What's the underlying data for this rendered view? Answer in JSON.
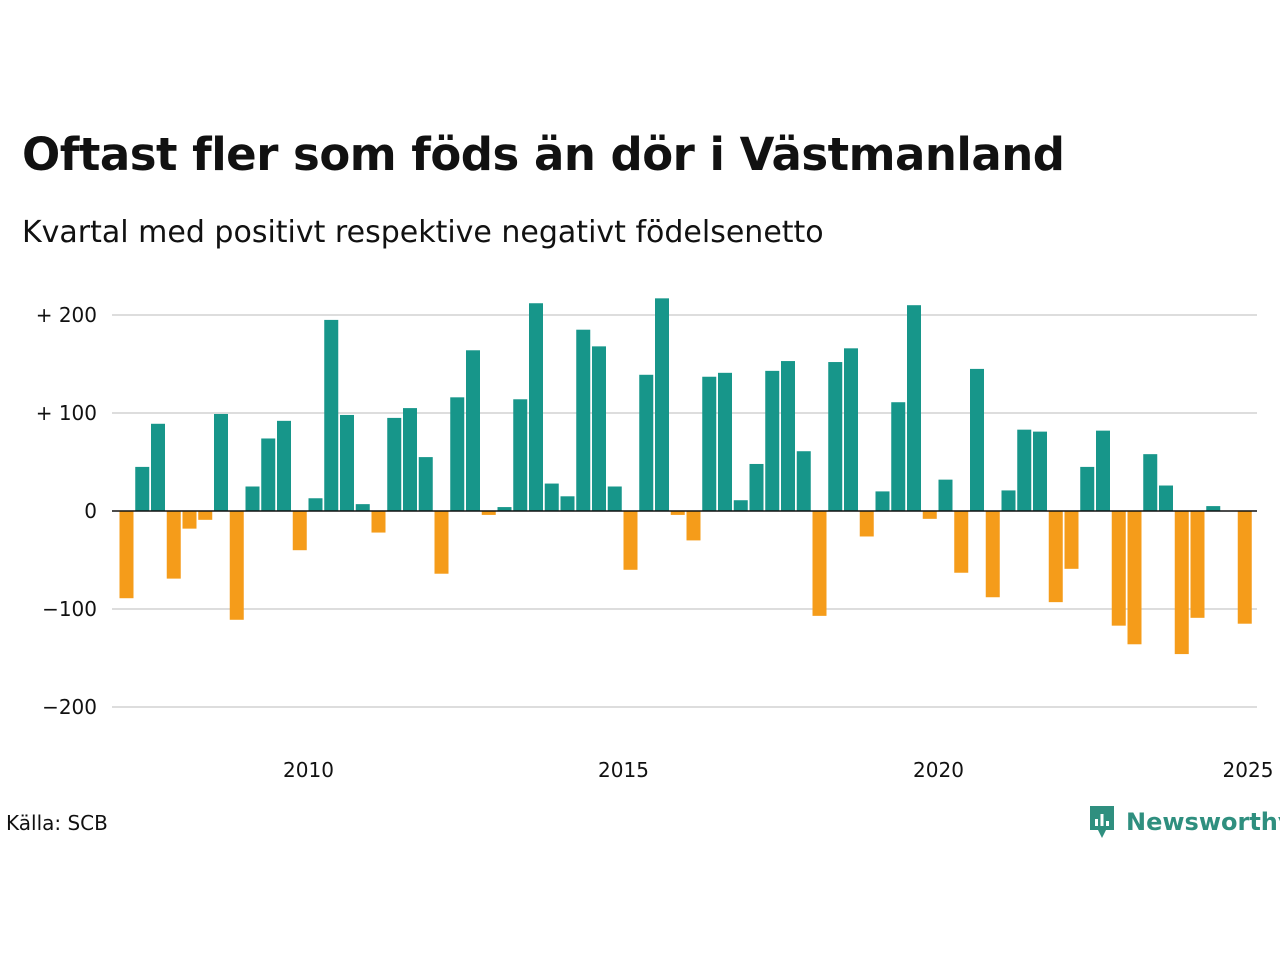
{
  "title": "Oftast fler som föds än dör i Västmanland",
  "subtitle": "Kvartal med positivt respektive negativt födelsenetto",
  "source": "Källa: SCB",
  "brand": "Newsworthy",
  "colors": {
    "positive": "#17968a",
    "negative": "#f59c1a",
    "grid": "#dddddd",
    "zero": "#111111",
    "brand": "#2f8f7f"
  },
  "chart_data": {
    "type": "bar",
    "quarters": [
      "2007-Q1",
      "2007-Q2",
      "2007-Q3",
      "2007-Q4",
      "2008-Q1",
      "2008-Q2",
      "2008-Q3",
      "2008-Q4",
      "2009-Q1",
      "2009-Q2",
      "2009-Q3",
      "2009-Q4",
      "2010-Q1",
      "2010-Q2",
      "2010-Q3",
      "2010-Q4",
      "2011-Q1",
      "2011-Q2",
      "2011-Q3",
      "2011-Q4",
      "2012-Q1",
      "2012-Q2",
      "2012-Q3",
      "2012-Q4",
      "2013-Q1",
      "2013-Q2",
      "2013-Q3",
      "2013-Q4",
      "2014-Q1",
      "2014-Q2",
      "2014-Q3",
      "2014-Q4",
      "2015-Q1",
      "2015-Q2",
      "2015-Q3",
      "2015-Q4",
      "2016-Q1",
      "2016-Q2",
      "2016-Q3",
      "2016-Q4",
      "2017-Q1",
      "2017-Q2",
      "2017-Q3",
      "2017-Q4",
      "2018-Q1",
      "2018-Q2",
      "2018-Q3",
      "2018-Q4",
      "2019-Q1",
      "2019-Q2",
      "2019-Q3",
      "2019-Q4",
      "2020-Q1",
      "2020-Q2",
      "2020-Q3",
      "2020-Q4",
      "2021-Q1",
      "2021-Q2",
      "2021-Q3",
      "2021-Q4",
      "2022-Q1",
      "2022-Q2",
      "2022-Q3",
      "2022-Q4",
      "2023-Q1",
      "2023-Q2",
      "2023-Q3",
      "2023-Q4",
      "2024-Q1",
      "2024-Q2",
      "2024-Q3",
      "2024-Q4"
    ],
    "values": [
      -89,
      45,
      89,
      -69,
      -18,
      -9,
      99,
      -111,
      25,
      74,
      92,
      -40,
      13,
      195,
      98,
      7,
      -22,
      95,
      105,
      55,
      -64,
      116,
      164,
      -4,
      4,
      114,
      212,
      28,
      15,
      185,
      168,
      25,
      -60,
      139,
      217,
      -4,
      -30,
      137,
      141,
      11,
      48,
      143,
      153,
      61,
      -107,
      152,
      166,
      -26,
      20,
      111,
      210,
      -8,
      32,
      -63,
      145,
      -88,
      21,
      83,
      81,
      -93,
      -59,
      45,
      82,
      -117,
      -136,
      58,
      26,
      -146,
      -109,
      5,
      0,
      -115
    ],
    "x_ticks": [
      "2010",
      "2015",
      "2020",
      "2025"
    ],
    "y_ticks": [
      {
        "value": 200,
        "label": "+ 200"
      },
      {
        "value": 100,
        "label": "+ 100"
      },
      {
        "value": 0,
        "label": "0"
      },
      {
        "value": -100,
        "label": "−100"
      },
      {
        "value": -200,
        "label": "−200"
      }
    ],
    "ylim": [
      -230,
      225
    ],
    "grid": true,
    "legend": "none"
  }
}
